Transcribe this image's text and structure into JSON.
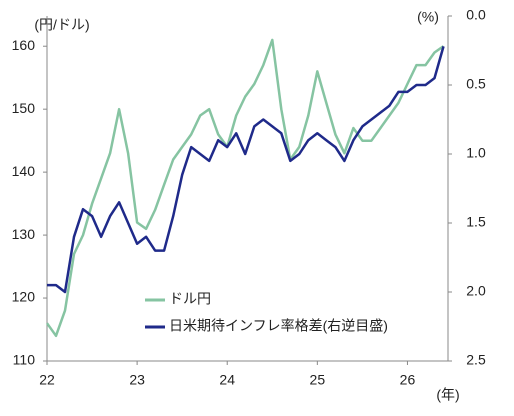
{
  "chart_data": {
    "type": "line",
    "y_unit_label": "(円/ドル)",
    "y2_unit_label": "(%)",
    "x_unit_label": "(年)",
    "x": [
      22.0,
      22.1,
      22.2,
      22.3,
      22.4,
      22.5,
      22.6,
      22.7,
      22.8,
      22.9,
      23.0,
      23.1,
      23.2,
      23.3,
      23.4,
      23.5,
      23.6,
      23.7,
      23.8,
      23.9,
      24.0,
      24.1,
      24.2,
      24.3,
      24.4,
      24.5,
      24.6,
      24.7,
      24.8,
      24.9,
      25.0,
      25.1,
      25.2,
      25.3,
      25.4,
      25.5,
      25.6,
      25.7,
      25.8,
      25.9,
      26.0,
      26.1,
      26.2,
      26.3,
      26.4
    ],
    "series": [
      {
        "name": "ドル円",
        "color": "#86c4a2",
        "axis": "y",
        "values": [
          116,
          114,
          118,
          127,
          130,
          135,
          139,
          143,
          150,
          143,
          132,
          131,
          134,
          138,
          142,
          144,
          146,
          149,
          150,
          146,
          144,
          149,
          152,
          154,
          157,
          161,
          150,
          142,
          144,
          149,
          156,
          151,
          146,
          143,
          147,
          145,
          145,
          147,
          149,
          151,
          154,
          157,
          157,
          159,
          160
        ]
      },
      {
        "name": "日米期待インフレ率格差(右逆目盛)",
        "color": "#1f2a8a",
        "axis": "y2",
        "values": [
          1.95,
          1.95,
          2.0,
          1.6,
          1.4,
          1.45,
          1.6,
          1.45,
          1.35,
          1.5,
          1.65,
          1.6,
          1.7,
          1.7,
          1.45,
          1.15,
          0.95,
          1.0,
          1.05,
          0.9,
          0.95,
          0.85,
          1.0,
          0.8,
          0.75,
          0.8,
          0.85,
          1.05,
          1.0,
          0.9,
          0.85,
          0.9,
          0.95,
          1.05,
          0.9,
          0.8,
          0.75,
          0.7,
          0.65,
          0.55,
          0.55,
          0.5,
          0.5,
          0.45,
          0.22
        ]
      }
    ],
    "xlim": [
      22,
      26.45
    ],
    "xticks": [
      22,
      23,
      24,
      25,
      26
    ],
    "ylim": [
      110,
      164.8
    ],
    "yticks": [
      110,
      120,
      130,
      140,
      150,
      160
    ],
    "y2lim": [
      2.5,
      0
    ],
    "y2_inverted": true,
    "y2ticks": [
      {
        "value": 0,
        "label": "0.0"
      },
      0.5,
      {
        "value": 1,
        "label": "1.0"
      },
      1.5,
      {
        "value": 2,
        "label": "2.0"
      },
      2.5
    ],
    "grid": false
  }
}
